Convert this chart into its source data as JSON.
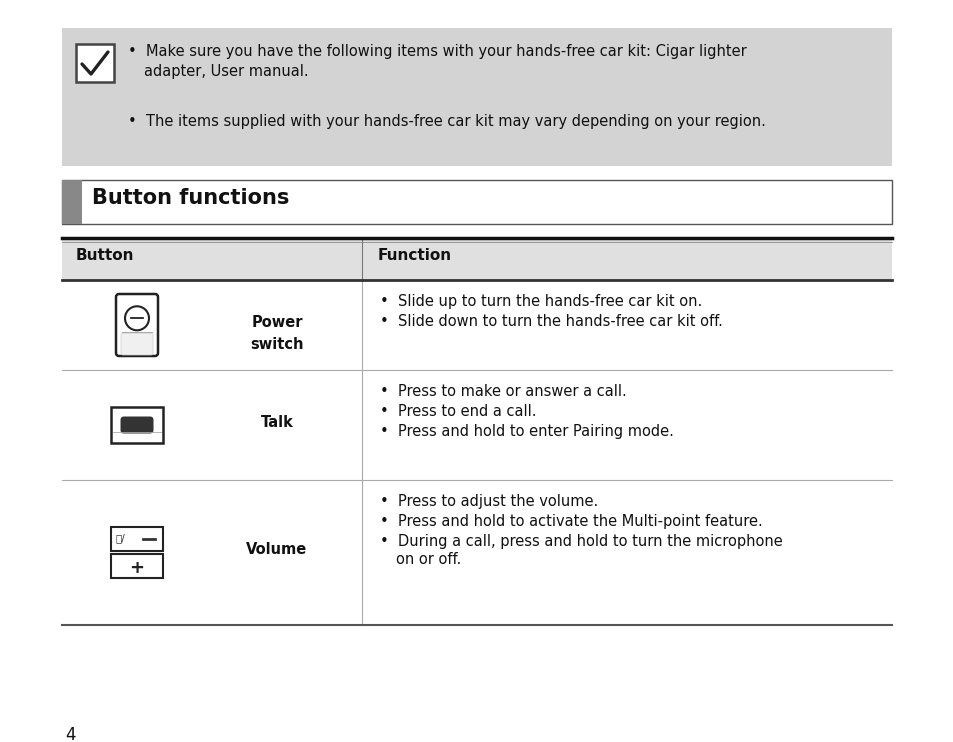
{
  "bg_color": "#ffffff",
  "note_bg": "#d3d3d3",
  "section_bar_color": "#888888",
  "table_header_bg": "#e0e0e0",
  "note_bullet1_line1": "Make sure you have the following items with your hands-free car kit: Cigar lighter",
  "note_bullet1_line2": "adapter, User manual.",
  "note_bullet2": "The items supplied with your hands-free car kit may vary depending on your region.",
  "section_title": "Button functions",
  "col1_header": "Button",
  "col2_header": "Function",
  "rows": [
    {
      "button_label": "Power\nswitch",
      "functions": [
        "Slide up to turn the hands-free car kit on.",
        "Slide down to turn the hands-free car kit off."
      ],
      "icon_type": "power"
    },
    {
      "button_label": "Talk",
      "functions": [
        "Press to make or answer a call.",
        "Press to end a call.",
        "Press and hold to enter Pairing mode."
      ],
      "icon_type": "talk"
    },
    {
      "button_label": "Volume",
      "functions": [
        "Press to adjust the volume.",
        "Press and hold to activate the Multi-point feature.",
        "During a call, press and hold to turn the microphone",
        "on or off."
      ],
      "icon_type": "volume"
    }
  ],
  "page_number": "4"
}
